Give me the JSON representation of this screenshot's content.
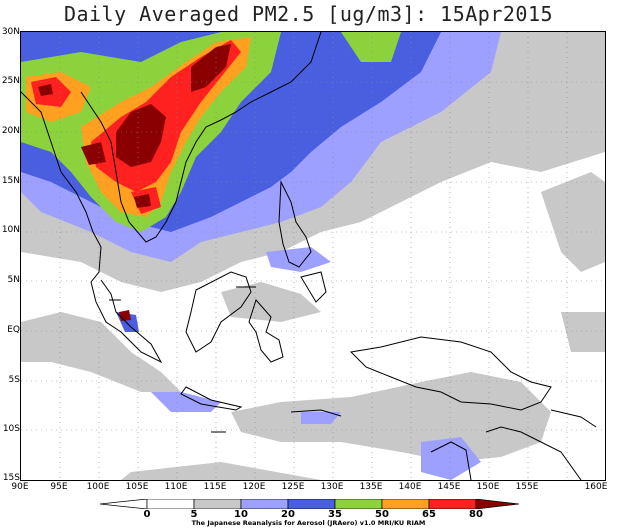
{
  "title": "Daily Averaged PM2.5 [ug/m3]: 15Apr2015",
  "credit": "The Japanese Reanalysis for Aerosol (JRAero) v1.0 MRI/KU RIAM",
  "lat_labels": [
    "30N",
    "25N",
    "20N",
    "15N",
    "10N",
    "5N",
    "EQ",
    "5S",
    "10S",
    "15S"
  ],
  "lon_labels": [
    "90E",
    "95E",
    "100E",
    "105E",
    "110E",
    "115E",
    "120E",
    "125E",
    "130E",
    "135E",
    "140E",
    "145E",
    "150E",
    "155E",
    "160E"
  ],
  "colorbar": {
    "ticks": [
      "0",
      "5",
      "10",
      "20",
      "35",
      "50",
      "65",
      "80"
    ],
    "colors": [
      "#ffffff",
      "#c8c8c8",
      "#9ea0ff",
      "#4a5fe0",
      "#8cd23c",
      "#ffa020",
      "#ff2020",
      "#8a0000"
    ]
  }
}
